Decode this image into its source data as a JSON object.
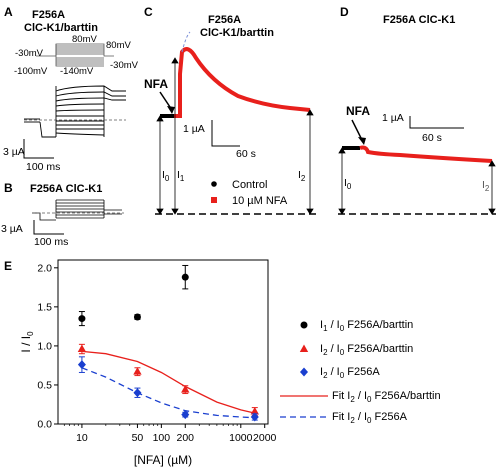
{
  "panels": {
    "A": {
      "letter": "A",
      "title1": "F256A",
      "title2": "ClC-K1/barttin",
      "protocol": {
        "v_hold1": "-30mV",
        "v_top": "80mV",
        "v_top_right": "80mV",
        "v_bottom": "-100mV",
        "v_bottom2": "-140mV",
        "v_hold2": "-30mV"
      },
      "scale_current": "3 µA",
      "scale_time": "100 ms"
    },
    "B": {
      "letter": "B",
      "title": "F256A ClC-K1",
      "scale_current": "3 µA",
      "scale_time": "100 ms"
    },
    "C": {
      "letter": "C",
      "title1": "F256A",
      "title2": "ClC-K1/barttin",
      "drug": "NFA",
      "scale_current": "1 µA",
      "scale_time": "60 s",
      "labels": {
        "i0": "I",
        "i0_sub": "0",
        "i1": "I",
        "i1_sub": "1",
        "i2": "I",
        "i2_sub": "2"
      },
      "legend": {
        "control": "Control",
        "nfa": "10 µM NFA"
      },
      "colors": {
        "control": "#000000",
        "nfa": "#e8201c"
      }
    },
    "D": {
      "letter": "D",
      "title": "F256A ClC-K1",
      "drug": "NFA",
      "scale_current": "1 µA",
      "scale_time": "60 s",
      "labels": {
        "i0": "I",
        "i0_sub": "0",
        "i2": "I",
        "i2_sub": "2"
      }
    }
  },
  "chart_data": {
    "letter": "E",
    "type": "scatter",
    "ylabel_main": "I / I",
    "ylabel_sub": "0",
    "xlabel": "[NFA] (µM)",
    "xscale": "log",
    "xlim": [
      5,
      2200
    ],
    "ylim": [
      0,
      2.1
    ],
    "xticks": [
      10,
      50,
      100,
      200,
      1000,
      2000
    ],
    "xticklabels": [
      "10",
      "50",
      "100",
      "200",
      "1000",
      "2000"
    ],
    "yticks": [
      0.0,
      0.5,
      1.0,
      1.5,
      2.0
    ],
    "yticklabels": [
      "0.0",
      "0.5",
      "1.0",
      "1.5",
      "2.0"
    ],
    "series": [
      {
        "name": "I1 / I0 F256A/barttin",
        "legend_main": "I",
        "legend_sub1": "1",
        "legend_mid": " / I",
        "legend_sub2": "0",
        "legend_tail": " F256A/barttin",
        "marker": "circle",
        "color": "#000000",
        "x": [
          10,
          50,
          200
        ],
        "y": [
          1.35,
          1.37,
          1.88
        ],
        "err": [
          0.09,
          0.03,
          0.15
        ]
      },
      {
        "name": "I2 / I0 F256A/barttin",
        "legend_main": "I",
        "legend_sub1": "2",
        "legend_mid": " / I",
        "legend_sub2": "0",
        "legend_tail": " F256A/barttin",
        "marker": "triangle",
        "color": "#e8201c",
        "x": [
          10,
          50,
          200,
          1500
        ],
        "y": [
          0.96,
          0.67,
          0.44,
          0.16
        ],
        "err": [
          0.06,
          0.05,
          0.05,
          0.05
        ]
      },
      {
        "name": "I2 / I0 F256A",
        "legend_main": "I",
        "legend_sub1": "2",
        "legend_mid": " / I",
        "legend_sub2": "0",
        "legend_tail": " F256A",
        "marker": "diamond",
        "color": "#1a3fcf",
        "x": [
          10,
          50,
          200,
          1500
        ],
        "y": [
          0.76,
          0.4,
          0.12,
          0.09
        ],
        "err": [
          0.1,
          0.06,
          0.03,
          0.04
        ]
      },
      {
        "name": "Fit I2 / I0 F256A/barttin",
        "legend_main": "Fit I",
        "legend_sub1": "2",
        "legend_mid": " / I",
        "legend_sub2": "0",
        "legend_tail": " F256A/barttin",
        "line": "solid",
        "color": "#e8201c",
        "x": [
          10,
          20,
          50,
          100,
          200,
          500,
          1000,
          1500
        ],
        "y": [
          0.93,
          0.9,
          0.8,
          0.66,
          0.48,
          0.28,
          0.18,
          0.14
        ]
      },
      {
        "name": "Fit I2 / I0 F256A",
        "legend_main": "Fit I",
        "legend_sub1": "2",
        "legend_mid": " / I",
        "legend_sub2": "0",
        "legend_tail": " F256A",
        "line": "dashed",
        "color": "#1a3fcf",
        "x": [
          10,
          20,
          50,
          100,
          200,
          500,
          1000,
          1500
        ],
        "y": [
          0.72,
          0.6,
          0.4,
          0.27,
          0.17,
          0.11,
          0.09,
          0.08
        ]
      }
    ]
  }
}
